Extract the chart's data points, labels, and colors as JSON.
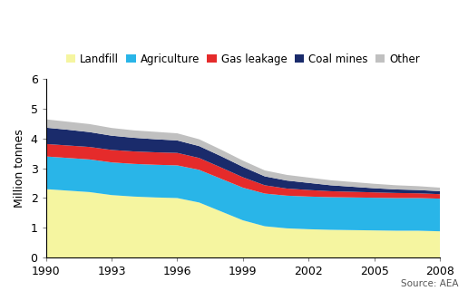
{
  "years": [
    1990,
    1991,
    1992,
    1993,
    1994,
    1995,
    1996,
    1997,
    1998,
    1999,
    2000,
    2001,
    2002,
    2003,
    2004,
    2005,
    2006,
    2007,
    2008
  ],
  "landfill": [
    2.3,
    2.25,
    2.2,
    2.1,
    2.05,
    2.02,
    2.0,
    1.85,
    1.55,
    1.25,
    1.05,
    0.98,
    0.95,
    0.93,
    0.92,
    0.91,
    0.9,
    0.9,
    0.88
  ],
  "agriculture": [
    1.1,
    1.1,
    1.1,
    1.1,
    1.1,
    1.1,
    1.1,
    1.1,
    1.1,
    1.1,
    1.1,
    1.1,
    1.1,
    1.1,
    1.1,
    1.1,
    1.1,
    1.1,
    1.1
  ],
  "gas_leakage": [
    0.42,
    0.42,
    0.42,
    0.42,
    0.42,
    0.42,
    0.42,
    0.4,
    0.38,
    0.35,
    0.28,
    0.24,
    0.22,
    0.2,
    0.19,
    0.18,
    0.17,
    0.16,
    0.15
  ],
  "coal_mines": [
    0.55,
    0.53,
    0.5,
    0.48,
    0.46,
    0.44,
    0.42,
    0.4,
    0.38,
    0.35,
    0.3,
    0.27,
    0.24,
    0.2,
    0.17,
    0.14,
    0.12,
    0.11,
    0.1
  ],
  "other": [
    0.28,
    0.27,
    0.27,
    0.26,
    0.25,
    0.25,
    0.24,
    0.23,
    0.22,
    0.21,
    0.2,
    0.19,
    0.18,
    0.17,
    0.16,
    0.15,
    0.14,
    0.13,
    0.12
  ],
  "colors": {
    "landfill": "#f5f5a0",
    "agriculture": "#29b5e8",
    "gas_leakage": "#e52b2b",
    "coal_mines": "#1a2b6b",
    "other": "#c0c0c0"
  },
  "legend_labels": [
    "Landfill",
    "Agriculture",
    "Gas leakage",
    "Coal mines",
    "Other"
  ],
  "ylabel": "Million tonnes",
  "ylim": [
    0,
    6
  ],
  "yticks": [
    0,
    1,
    2,
    3,
    4,
    5,
    6
  ],
  "source_text": "Source: AEA",
  "background_color": "#ffffff",
  "xtick_years": [
    1990,
    1993,
    1996,
    1999,
    2002,
    2005,
    2008
  ]
}
